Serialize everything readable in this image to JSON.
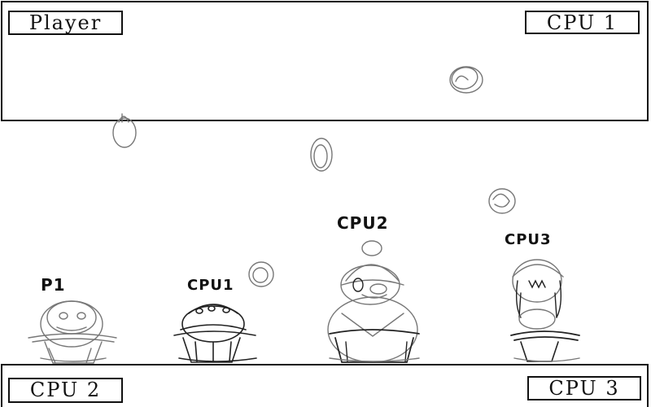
{
  "hud": {
    "player_label": "Player",
    "cpu1_label": "CPU 1",
    "cpu2_label": "CPU 2",
    "cpu3_label": "CPU 3"
  },
  "characters": {
    "p1_tag": "P1",
    "cpu1_tag": "CPU1",
    "cpu2_tag": "CPU2",
    "cpu3_tag": "CPU3"
  },
  "colors": {
    "line": "#111111",
    "sketch": "#777777",
    "background": "#ffffff"
  }
}
